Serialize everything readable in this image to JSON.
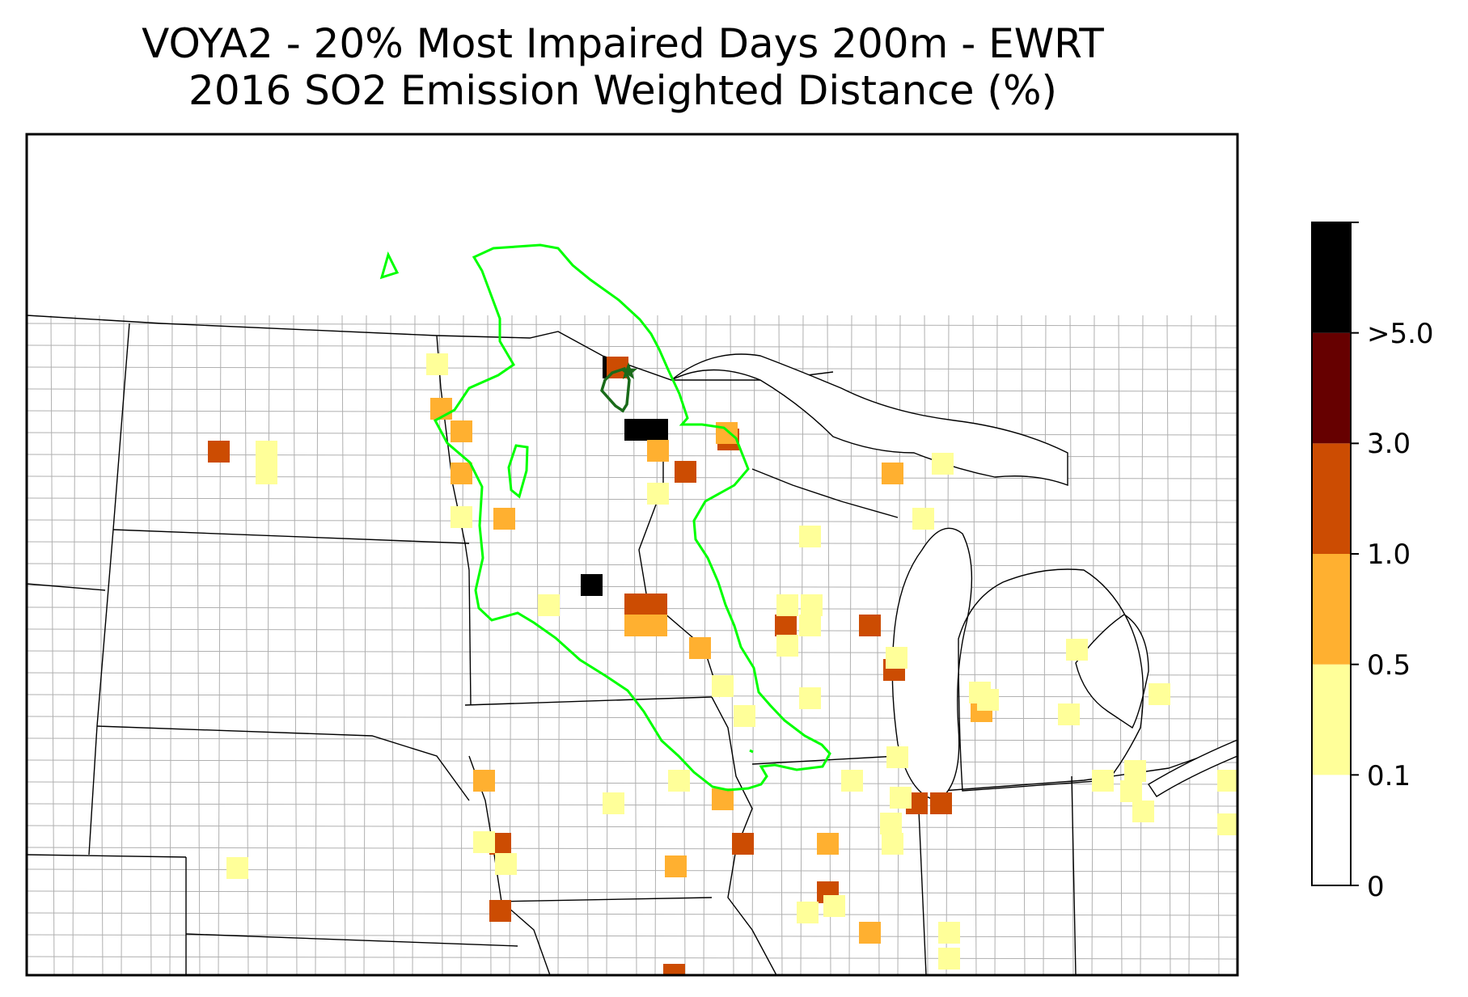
{
  "title": {
    "line1": "VOYA2 - 20% Most Impaired Days 200m - EWRT",
    "line2": "2016 SO2 Emission Weighted Distance (%)"
  },
  "legend": {
    "tick_labels": [
      "0",
      "0.1",
      "0.5",
      "1.0",
      "3.0",
      ">5.0"
    ],
    "colors": [
      "#ffffff",
      "#ffff99",
      "#ffb030",
      "#cc4c02",
      "#660000",
      "#000000"
    ]
  },
  "map": {
    "outline_color_inner": "#1a6b1a",
    "outline_color_outer": "#00ff00",
    "receptor_marker": "star-icon"
  },
  "chart_data": {
    "type": "heatmap",
    "title": "VOYA2 - 20% Most Impaired Days 200m - EWRT 2016 SO2 Emission Weighted Distance (%)",
    "colorbar": {
      "bins": [
        {
          "range": "0-0.1",
          "color": "#ffffff"
        },
        {
          "range": "0.1-0.5",
          "color": "#ffff99"
        },
        {
          "range": "0.5-1.0",
          "color": "#ffb030"
        },
        {
          "range": "1.0-3.0",
          "color": "#cc4c02"
        },
        {
          "range": "3.0-5.0",
          "color": "#660000"
        },
        {
          "range": ">5.0",
          "color": "#000000"
        }
      ]
    },
    "region": "Upper Midwest United States county map",
    "grid_cells_by_class": {
      ">5.0": 4,
      "1.0-3.0": 14,
      "0.5-1.0": 17,
      "0.1-0.5": 40
    }
  }
}
